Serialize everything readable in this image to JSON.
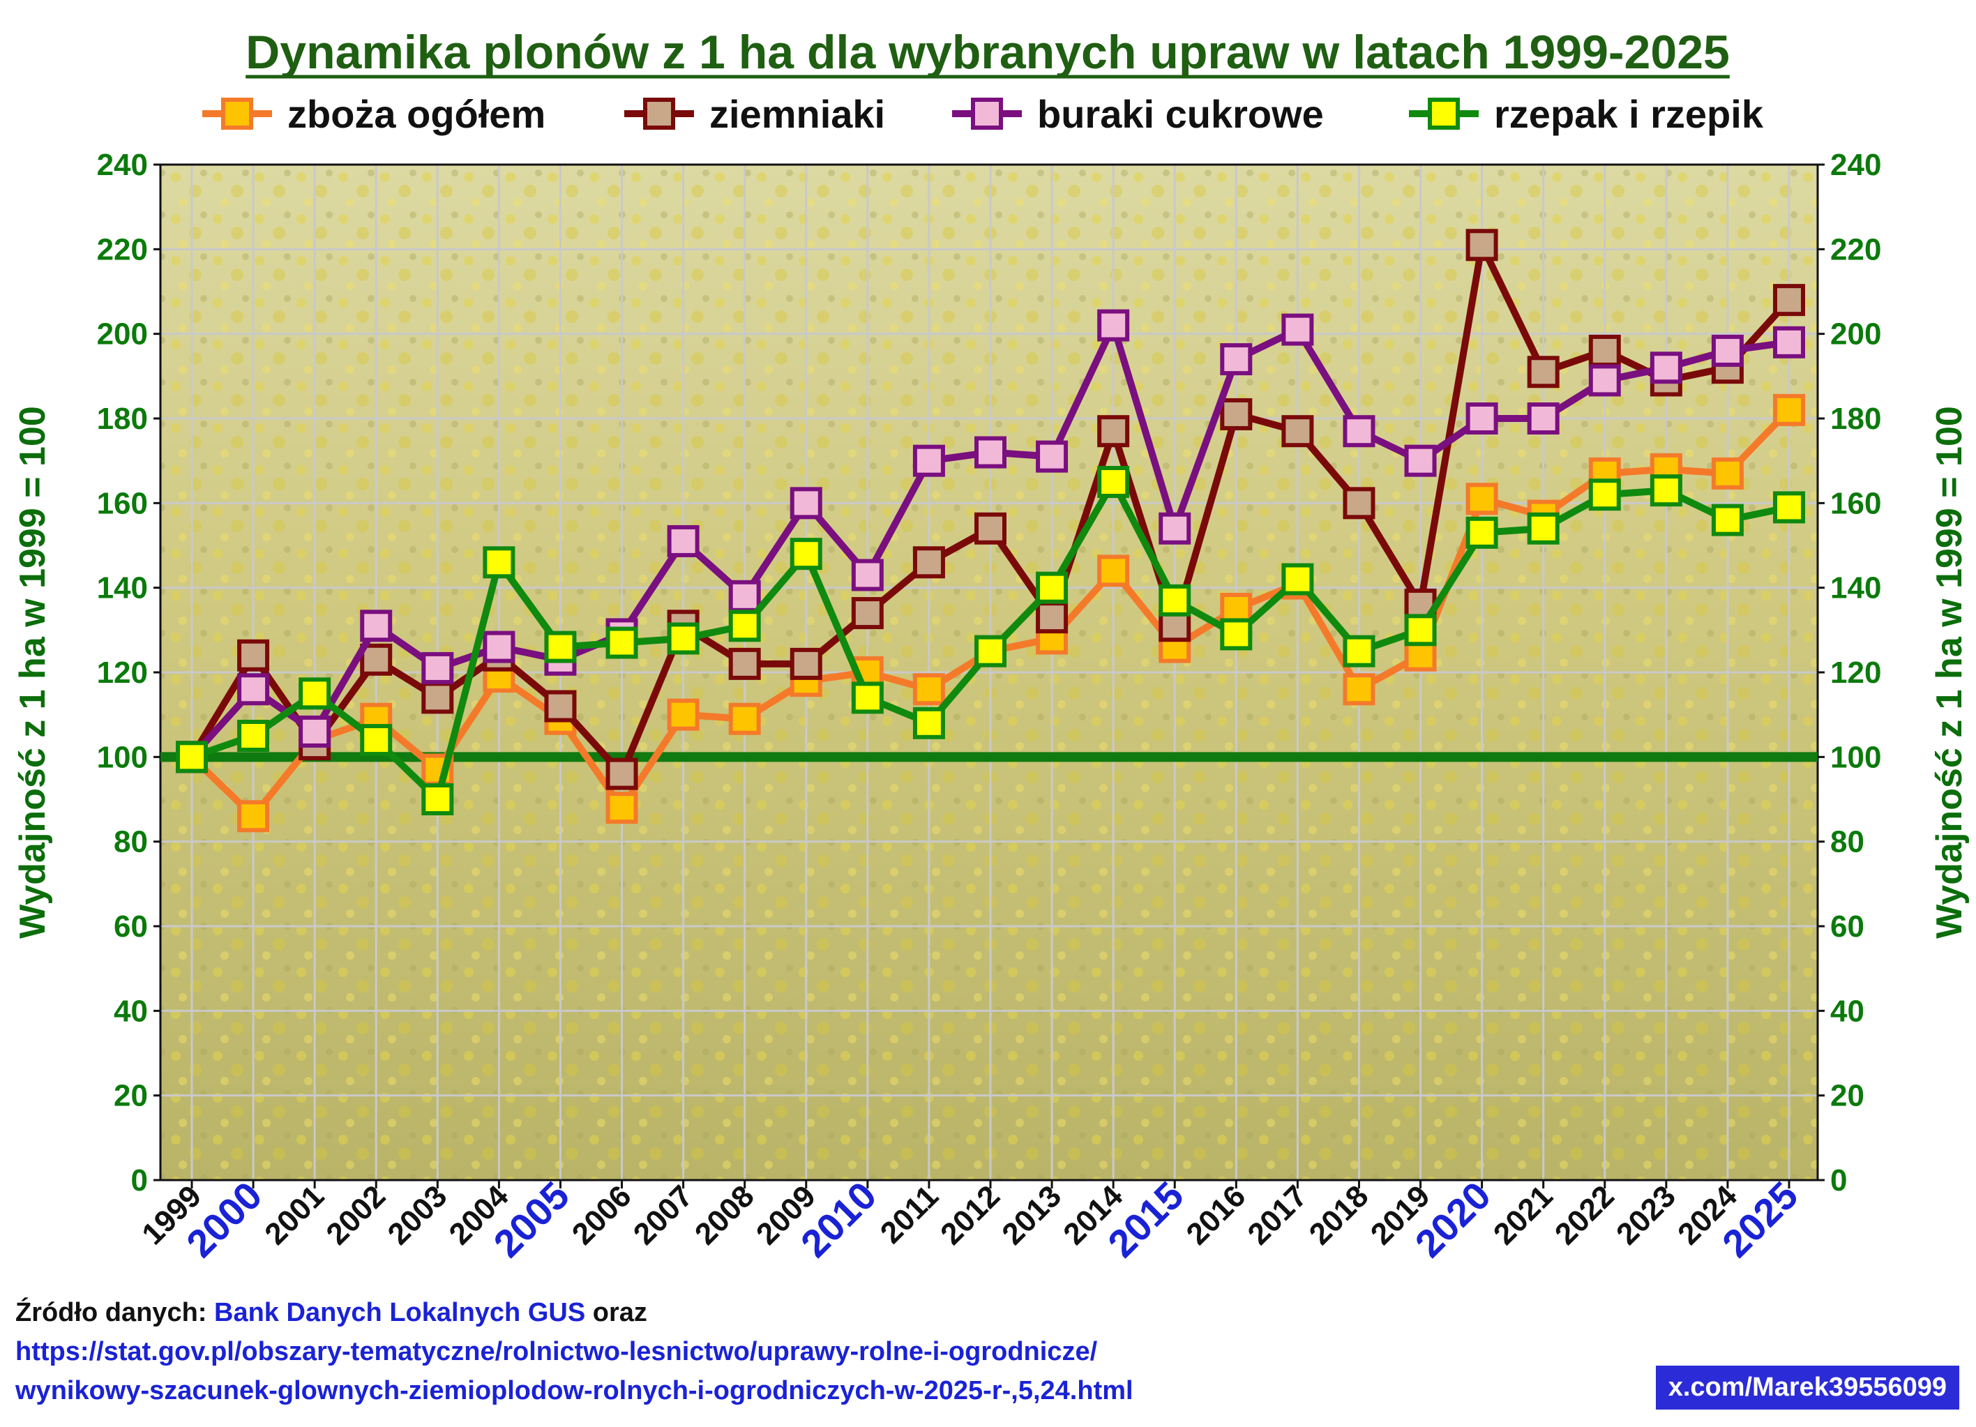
{
  "chart_data": {
    "type": "line",
    "title": "Dynamika plonów z 1 ha dla wybranych upraw w latach 1999-2025",
    "ylabel": "Wydajność z 1 ha w 1999 = 100",
    "ylim": [
      0,
      240
    ],
    "yticks": [
      "0",
      "20",
      "40",
      "60",
      "80",
      "100",
      "120",
      "140",
      "160",
      "180",
      "200",
      "220",
      "240"
    ],
    "x": [
      "1999",
      "2000",
      "2001",
      "2002",
      "2003",
      "2004",
      "2005",
      "2006",
      "2007",
      "2008",
      "2009",
      "2010",
      "2011",
      "2012",
      "2013",
      "2014",
      "2015",
      "2016",
      "2017",
      "2018",
      "2019",
      "2020",
      "2021",
      "2022",
      "2023",
      "2024",
      "2025"
    ],
    "major_years": [
      "2000",
      "2005",
      "2010",
      "2015",
      "2020",
      "2025"
    ],
    "baseline": 100,
    "legend_position": "top",
    "grid": true,
    "series": [
      {
        "name": "zboża ogółem",
        "line_color": "#f47a2a",
        "marker_color": "#ffc400",
        "values": [
          100,
          86,
          104,
          109,
          97,
          119,
          109,
          88,
          110,
          109,
          118,
          120,
          116,
          125,
          128,
          144,
          126,
          135,
          141,
          116,
          124,
          161,
          157,
          167,
          168,
          167,
          182
        ]
      },
      {
        "name": "ziemniaki",
        "line_color": "#7a0a0a",
        "marker_color": "#c8a888",
        "values": [
          100,
          124,
          103,
          123,
          114,
          124,
          112,
          96,
          131,
          122,
          122,
          134,
          146,
          154,
          133,
          177,
          131,
          181,
          177,
          160,
          136,
          221,
          191,
          196,
          189,
          192,
          208
        ]
      },
      {
        "name": "buraki cukrowe",
        "line_color": "#7a0f80",
        "marker_color": "#f2b8d8",
        "values": [
          100,
          116,
          106,
          131,
          121,
          126,
          123,
          129,
          151,
          138,
          160,
          143,
          170,
          172,
          171,
          202,
          154,
          194,
          201,
          177,
          170,
          180,
          180,
          189,
          192,
          196,
          198
        ]
      },
      {
        "name": "rzepak i rzepik",
        "line_color": "#0f8a0f",
        "marker_color": "#ffff00",
        "values": [
          100,
          105,
          115,
          104,
          90,
          146,
          126,
          127,
          128,
          131,
          148,
          114,
          108,
          125,
          140,
          165,
          137,
          129,
          142,
          125,
          130,
          153,
          154,
          162,
          163,
          156,
          159
        ]
      }
    ]
  },
  "source": {
    "prefix": "Źródło danych:",
    "link1": "Bank Danych Lokalnych GUS",
    "conj": "oraz",
    "url_line1": "https://stat.gov.pl/obszary-tematyczne/rolnictwo-lesnictwo/uprawy-rolne-i-ogrodnicze/",
    "url_line2": "wynikowy-szacunek-glownych-ziemioplodow-rolnych-i-ogrodniczych-w-2025-r-,5,24.html"
  },
  "badge": "x.com/Marek39556099"
}
